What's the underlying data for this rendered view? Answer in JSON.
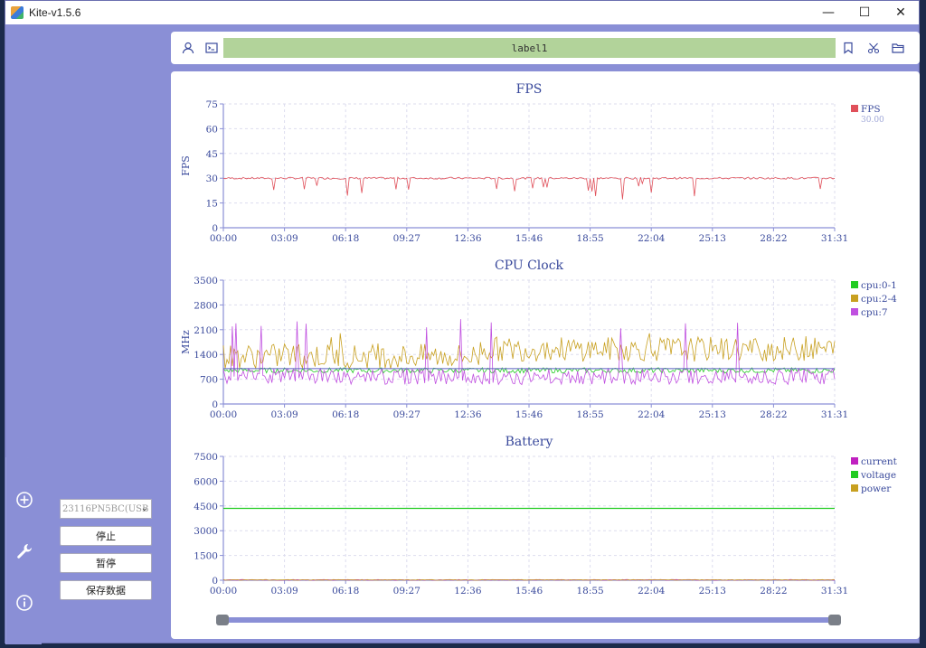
{
  "window": {
    "title": "Kite-v1.5.6",
    "controls": {
      "minimize": "—",
      "maximize": "☐",
      "close": "✕"
    }
  },
  "toolbar": {
    "label": "label1",
    "icons": [
      "user-icon",
      "terminal-icon",
      "bookmark-icon",
      "scissors-icon",
      "folder-icon"
    ]
  },
  "sidebar": {
    "rail_icons": [
      "add-circle-icon",
      "wrench-icon",
      "info-icon"
    ],
    "device_select": "23116PN5BC(USB",
    "buttons": {
      "stop": "停止",
      "pause": "暂停",
      "save": "保存数据"
    }
  },
  "colors": {
    "accent": "#8a8fd6",
    "fps": "#e0505a",
    "cpu01": "#22cc22",
    "cpu24": "#c8a020",
    "cpu7": "#c050e0",
    "current": "#c020c0",
    "voltage": "#22cc22",
    "power": "#c8a020",
    "axis_text": "#3a4a9c"
  },
  "chart_data": [
    {
      "type": "line",
      "title": "FPS",
      "ylabel": "FPS",
      "yticks": [
        "75",
        "60",
        "45",
        "30",
        "15",
        "0"
      ],
      "ylim": [
        0,
        75
      ],
      "xticks": [
        "00:00",
        "03:09",
        "06:18",
        "09:27",
        "12:36",
        "15:46",
        "18:55",
        "22:04",
        "25:13",
        "28:22",
        "31:31"
      ],
      "series": [
        {
          "name": "FPS",
          "value_label": "30.00",
          "baseline": 30
        }
      ]
    },
    {
      "type": "line",
      "title": "CPU Clock",
      "ylabel": "MHz",
      "yticks": [
        "3500",
        "2800",
        "2100",
        "1400",
        "700",
        "0"
      ],
      "ylim": [
        0,
        3500
      ],
      "xticks": [
        "00:00",
        "03:09",
        "06:18",
        "09:27",
        "12:36",
        "15:46",
        "18:55",
        "22:04",
        "25:13",
        "28:22",
        "31:31"
      ],
      "series": [
        {
          "name": "cpu:0-1",
          "baseline": 1000
        },
        {
          "name": "cpu:2-4",
          "baseline": 1500
        },
        {
          "name": "cpu:7",
          "baseline": 950
        }
      ]
    },
    {
      "type": "line",
      "title": "Battery",
      "ylabel": "",
      "yticks": [
        "7500",
        "6000",
        "4500",
        "3000",
        "1500",
        "0"
      ],
      "ylim": [
        0,
        7500
      ],
      "xticks": [
        "00:00",
        "03:09",
        "06:18",
        "09:27",
        "12:36",
        "15:46",
        "18:55",
        "22:04",
        "25:13",
        "28:22",
        "31:31"
      ],
      "series": [
        {
          "name": "current",
          "baseline": 0
        },
        {
          "name": "voltage",
          "baseline": 4350
        },
        {
          "name": "power",
          "baseline": 0
        }
      ]
    }
  ]
}
